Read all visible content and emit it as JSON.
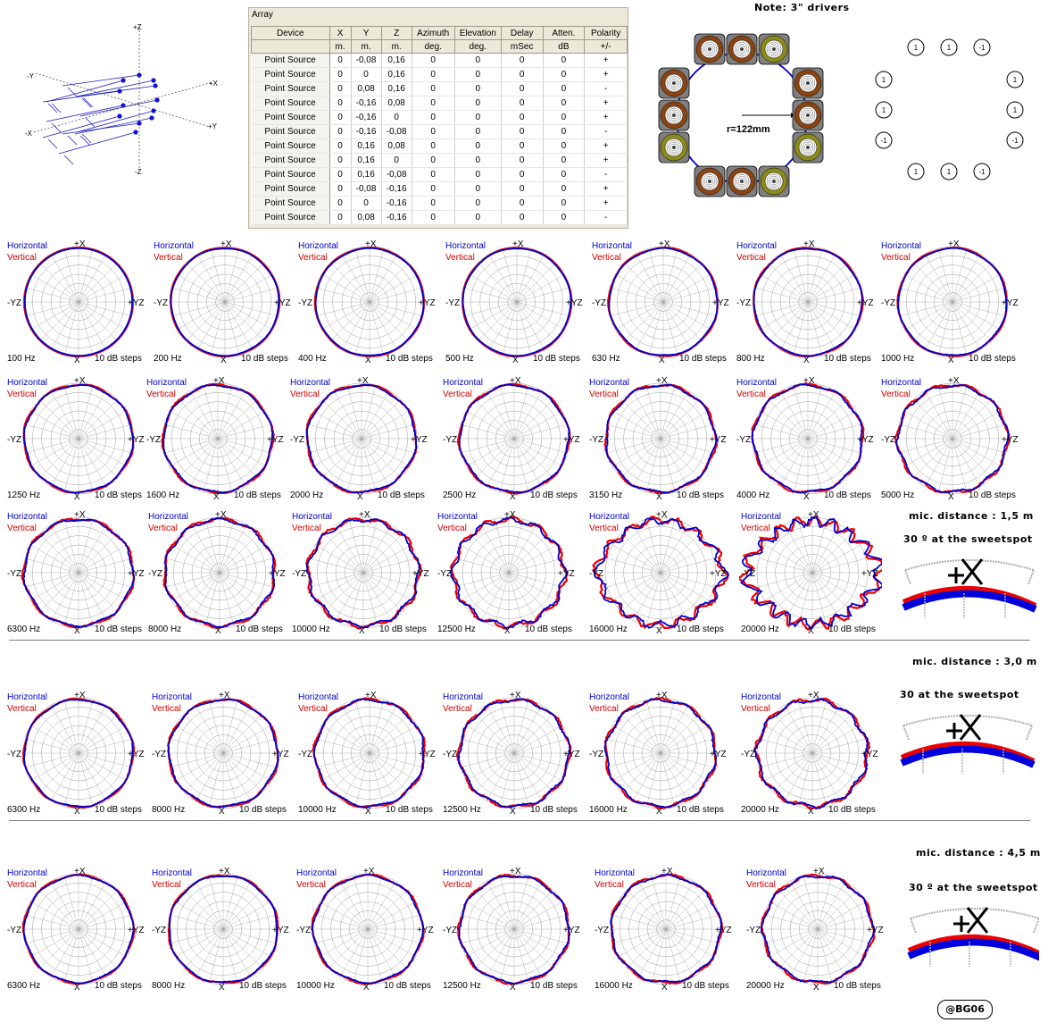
{
  "note": "Note: 3\" drivers",
  "radius_label": "r=122mm",
  "credit": "@BG06",
  "axis3d": {
    "pz": "+Z",
    "nz": "-Z",
    "ny": "-Y",
    "py": "+Y",
    "nx": "-X",
    "px": "+X"
  },
  "array": {
    "title": "Array",
    "headers": [
      "Device",
      "X",
      "Y",
      "Z",
      "Azimuth",
      "Elevation",
      "Delay",
      "Atten.",
      "Polarity"
    ],
    "units": [
      "",
      "m.",
      "m.",
      "m.",
      "deg.",
      "deg.",
      "mSec",
      "dB",
      "+/-"
    ],
    "rows": [
      [
        "Point Source",
        "0",
        "-0,08",
        "0,16",
        "0",
        "0",
        "0",
        "0",
        "+"
      ],
      [
        "Point Source",
        "0",
        "0",
        "0,16",
        "0",
        "0",
        "0",
        "0",
        "+"
      ],
      [
        "Point Source",
        "0",
        "0,08",
        "0,16",
        "0",
        "0",
        "0",
        "0",
        "-"
      ],
      [
        "Point Source",
        "0",
        "-0,16",
        "0,08",
        "0",
        "0",
        "0",
        "0",
        "+"
      ],
      [
        "Point Source",
        "0",
        "-0,16",
        "0",
        "0",
        "0",
        "0",
        "0",
        "+"
      ],
      [
        "Point Source",
        "0",
        "-0,16",
        "-0,08",
        "0",
        "0",
        "0",
        "0",
        "-"
      ],
      [
        "Point Source",
        "0",
        "0,16",
        "0,08",
        "0",
        "0",
        "0",
        "0",
        "+"
      ],
      [
        "Point Source",
        "0",
        "0,16",
        "0",
        "0",
        "0",
        "0",
        "0",
        "+"
      ],
      [
        "Point Source",
        "0",
        "0,16",
        "-0,08",
        "0",
        "0",
        "0",
        "0",
        "-"
      ],
      [
        "Point Source",
        "0",
        "-0,08",
        "-0,16",
        "0",
        "0",
        "0",
        "0",
        "+"
      ],
      [
        "Point Source",
        "0",
        "0",
        "-0,16",
        "0",
        "0",
        "0",
        "0",
        "+"
      ],
      [
        "Point Source",
        "0",
        "0,08",
        "-0,16",
        "0",
        "0",
        "0",
        "0",
        "-"
      ]
    ]
  },
  "drivers": {
    "colors": {
      "brown": "#8b4513",
      "olive": "#8b8b1a",
      "box": "#808080"
    },
    "polarity_top": [
      "1",
      "1",
      "-1"
    ],
    "polarity_left": [
      "1",
      "1",
      "-1"
    ],
    "polarity_right": [
      "1",
      "1",
      "-1"
    ],
    "polarity_bottom": [
      "1",
      "1",
      "-1"
    ]
  },
  "polar_labels": {
    "horizontal": "Horizontal",
    "vertical": "Vertical",
    "top": "+X",
    "bottom": "X",
    "left": "-YZ",
    "right": "+YZ",
    "steps": "10 dB steps"
  },
  "colors": {
    "horizontal": "#0000cc",
    "vertical": "#ee0000",
    "grid": "#a0a0a0"
  },
  "mic_sections": [
    {
      "distance": "mic. distance  : 1,5 m",
      "sweetspot": "30 º at the sweetspot"
    },
    {
      "distance": "mic. distance  : 3,0 m",
      "sweetspot": "30  at the  sweetspot"
    },
    {
      "distance": "mic. distance   : 4,5 m",
      "sweetspot": "30 º at the  sweetspot"
    }
  ],
  "chart_data": {
    "type": "polar",
    "rows": [
      {
        "frequencies": [
          "100 Hz",
          "200 Hz",
          "400 Hz",
          "500 Hz",
          "630 Hz",
          "800 Hz",
          "1000 Hz"
        ],
        "ripple": [
          0.0,
          0.01,
          0.01,
          0.01,
          0.02,
          0.02,
          0.02
        ]
      },
      {
        "frequencies": [
          "1250 Hz",
          "1600 Hz",
          "2000 Hz",
          "2500 Hz",
          "3150 Hz",
          "4000 Hz",
          "5000 Hz"
        ],
        "ripple": [
          0.03,
          0.04,
          0.04,
          0.04,
          0.05,
          0.05,
          0.06
        ]
      },
      {
        "frequencies": [
          "6300 Hz",
          "8000 Hz",
          "10000 Hz",
          "12500 Hz",
          "16000 Hz",
          "20000 Hz"
        ],
        "ripple": [
          0.05,
          0.06,
          0.08,
          0.1,
          0.14,
          0.2
        ]
      },
      {
        "frequencies": [
          "6300 Hz",
          "8000 Hz",
          "10000 Hz",
          "12500 Hz",
          "16000 Hz",
          "20000 Hz"
        ],
        "ripple": [
          0.03,
          0.04,
          0.05,
          0.06,
          0.06,
          0.08
        ]
      },
      {
        "frequencies": [
          "6300 Hz",
          "8000 Hz",
          "10000 Hz",
          "12500 Hz",
          "16000 Hz",
          "20000 Hz"
        ],
        "ripple": [
          0.03,
          0.03,
          0.04,
          0.05,
          0.05,
          0.06
        ]
      }
    ],
    "radial_step_db": 10,
    "series": [
      {
        "name": "Horizontal"
      },
      {
        "name": "Vertical"
      }
    ]
  }
}
